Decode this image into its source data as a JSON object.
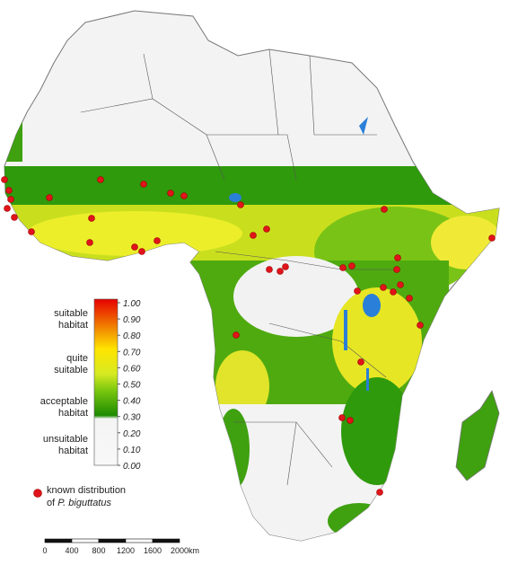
{
  "legend": {
    "ticks": [
      "1.00",
      "0.90",
      "0.80",
      "0.70",
      "0.60",
      "0.50",
      "0.40",
      "0.30",
      "0.20",
      "0.10",
      "0.00"
    ],
    "classes": [
      [
        "suitable",
        "habitat"
      ],
      [
        "quite",
        "suitable"
      ],
      [
        "acceptable",
        "habitat"
      ],
      [
        "unsuitable",
        "habitat"
      ]
    ],
    "points": {
      "label": "known distribution",
      "prefix": "of",
      "species": "P. biguttatus"
    }
  },
  "scale_bar": {
    "labels": [
      "0",
      "400",
      "800",
      "1200",
      "1600",
      "2000"
    ],
    "unit": "km"
  }
}
